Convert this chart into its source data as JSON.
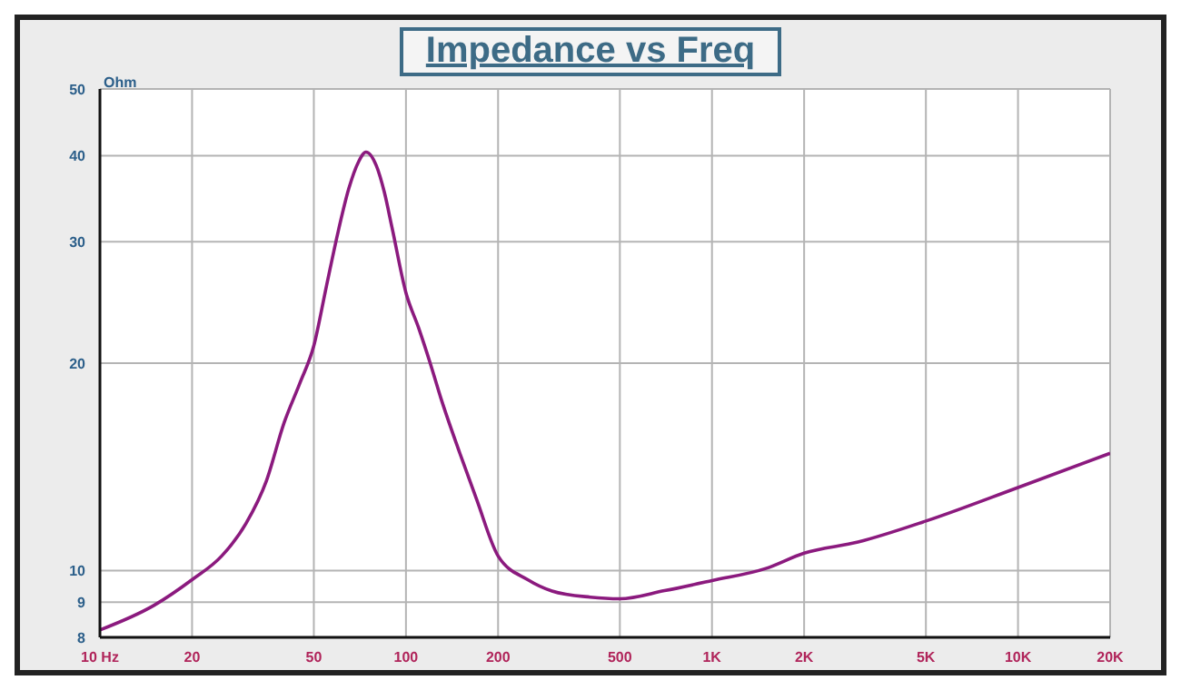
{
  "chart_data": {
    "type": "line",
    "title": "Impedance vs Freq",
    "ylabel": "Ohm",
    "x": [
      10,
      15,
      20,
      25,
      30,
      35,
      40,
      45,
      50,
      55,
      60,
      65,
      70,
      74,
      80,
      85,
      90,
      100,
      110,
      120,
      130,
      150,
      170,
      200,
      250,
      300,
      400,
      500,
      700,
      1000,
      1500,
      2000,
      3000,
      5000,
      10000,
      20000
    ],
    "series": [
      {
        "color": "#8b1a7e",
        "values": [
          8.2,
          8.9,
          9.7,
          10.5,
          11.7,
          13.5,
          16.4,
          18.7,
          21.2,
          25.9,
          31,
          35.8,
          39.2,
          40.5,
          38.7,
          35.4,
          31.5,
          25.3,
          22.5,
          20,
          17.8,
          14.8,
          12.7,
          10.5,
          9.7,
          9.34,
          9.15,
          9.1,
          9.35,
          9.67,
          10.07,
          10.6,
          11,
          11.8,
          13.2,
          14.8
        ]
      }
    ],
    "log": "xy",
    "xlim": [
      10,
      20000
    ],
    "ylim": [
      8,
      50
    ],
    "xticks": [
      {
        "value": 10,
        "label": "10  Hz"
      },
      20,
      50,
      100,
      200,
      500,
      {
        "value": 1000,
        "label": "1K"
      },
      {
        "value": 2000,
        "label": "2K"
      },
      {
        "value": 5000,
        "label": "5K"
      },
      {
        "value": 10000,
        "label": "10K"
      },
      {
        "value": 20000,
        "label": "20K"
      }
    ],
    "yticks": [
      8,
      9,
      10,
      20,
      30,
      40,
      50
    ],
    "grid": true,
    "line_style": "solid",
    "marker": "none"
  }
}
